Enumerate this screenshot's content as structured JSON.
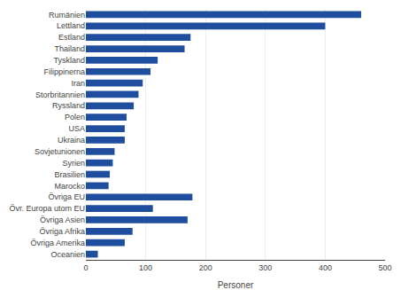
{
  "chart_data": {
    "type": "bar",
    "orientation": "horizontal",
    "categories": [
      "Rumänien",
      "Lettland",
      "Estland",
      "Thailand",
      "Tyskland",
      "Filippinerna",
      "Iran",
      "Storbritannien",
      "Ryssland",
      "Polen",
      "USA",
      "Ukraina",
      "Sovjetunionen",
      "Syrien",
      "Brasilien",
      "Marocko",
      "Övriga EU",
      "Övr. Europa utom EU",
      "Övriga Asien",
      "Övriga Afrika",
      "Övriga Amerika",
      "Oceanien"
    ],
    "values": [
      460,
      400,
      175,
      165,
      120,
      108,
      95,
      88,
      80,
      68,
      65,
      65,
      48,
      45,
      40,
      38,
      178,
      112,
      170,
      78,
      65,
      20
    ],
    "color": "#1F4E9E",
    "xlabel": "Personer",
    "xlim": [
      0,
      500
    ],
    "xticks": [
      0,
      100,
      200,
      300,
      400,
      500
    ],
    "grid": true
  }
}
